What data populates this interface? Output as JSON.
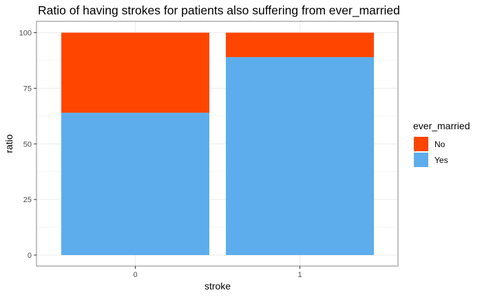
{
  "chart_data": {
    "type": "bar",
    "stacked": true,
    "title": "Ratio of having strokes for patients also suffering from ever_married",
    "xlabel": "stroke",
    "ylabel": "ratio",
    "categories": [
      "0",
      "1"
    ],
    "ylim": [
      0,
      100
    ],
    "yticks": [
      "0",
      "25",
      "50",
      "75",
      "100"
    ],
    "grid": true,
    "legend": {
      "title": "ever_married",
      "position": "right",
      "entries": [
        "No",
        "Yes"
      ]
    },
    "series": [
      {
        "name": "Yes",
        "values": [
          64.0,
          89.0
        ],
        "color": "#5DADEC"
      },
      {
        "name": "No",
        "values": [
          36.0,
          11.0
        ],
        "color": "#FF4500"
      }
    ]
  }
}
